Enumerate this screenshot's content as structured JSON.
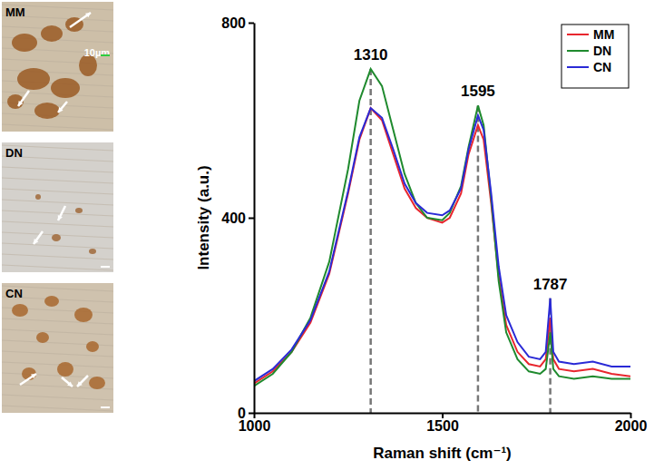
{
  "chart_data": {
    "type": "line",
    "x_label": "Raman shift (cm⁻¹)",
    "y_label": "Intensity (a.u.)",
    "x": [
      1000,
      1050,
      1100,
      1150,
      1200,
      1250,
      1280,
      1310,
      1340,
      1370,
      1400,
      1430,
      1460,
      1500,
      1520,
      1550,
      1570,
      1595,
      1610,
      1630,
      1650,
      1670,
      1700,
      1730,
      1760,
      1775,
      1787,
      1795,
      1810,
      1850,
      1900,
      1950,
      2000
    ],
    "series": [
      {
        "name": "MM",
        "color": "#e8262e",
        "values": [
          60,
          85,
          125,
          185,
          285,
          450,
          560,
          625,
          600,
          530,
          460,
          420,
          400,
          390,
          400,
          450,
          530,
          590,
          560,
          430,
          280,
          180,
          125,
          100,
          95,
          110,
          195,
          110,
          90,
          85,
          90,
          80,
          75
        ]
      },
      {
        "name": "DN",
        "color": "#1f8a2e",
        "values": [
          55,
          80,
          125,
          195,
          310,
          500,
          640,
          705,
          670,
          580,
          490,
          430,
          400,
          395,
          410,
          465,
          545,
          630,
          590,
          440,
          270,
          165,
          110,
          85,
          80,
          90,
          165,
          90,
          75,
          70,
          75,
          70,
          70
        ]
      },
      {
        "name": "CN",
        "color": "#2a2ad6",
        "values": [
          65,
          90,
          130,
          190,
          290,
          455,
          565,
          625,
          605,
          540,
          470,
          430,
          410,
          405,
          415,
          460,
          540,
          610,
          580,
          450,
          300,
          200,
          145,
          115,
          110,
          125,
          235,
          125,
          105,
          100,
          105,
          95,
          95
        ]
      }
    ],
    "xlim": [
      1000,
      2000
    ],
    "ylim": [
      0,
      800
    ],
    "xticks": [
      1000,
      1500,
      2000
    ],
    "yticks": [
      0,
      400,
      800
    ],
    "legend": "top-right",
    "annotations": [
      {
        "text": "1310",
        "x": 1310
      },
      {
        "text": "1595",
        "x": 1595
      },
      {
        "text": "1787",
        "x": 1787
      }
    ]
  },
  "panels": [
    {
      "label": "MM",
      "scale_bar": "10µm"
    },
    {
      "label": "DN"
    },
    {
      "label": "CN"
    }
  ]
}
